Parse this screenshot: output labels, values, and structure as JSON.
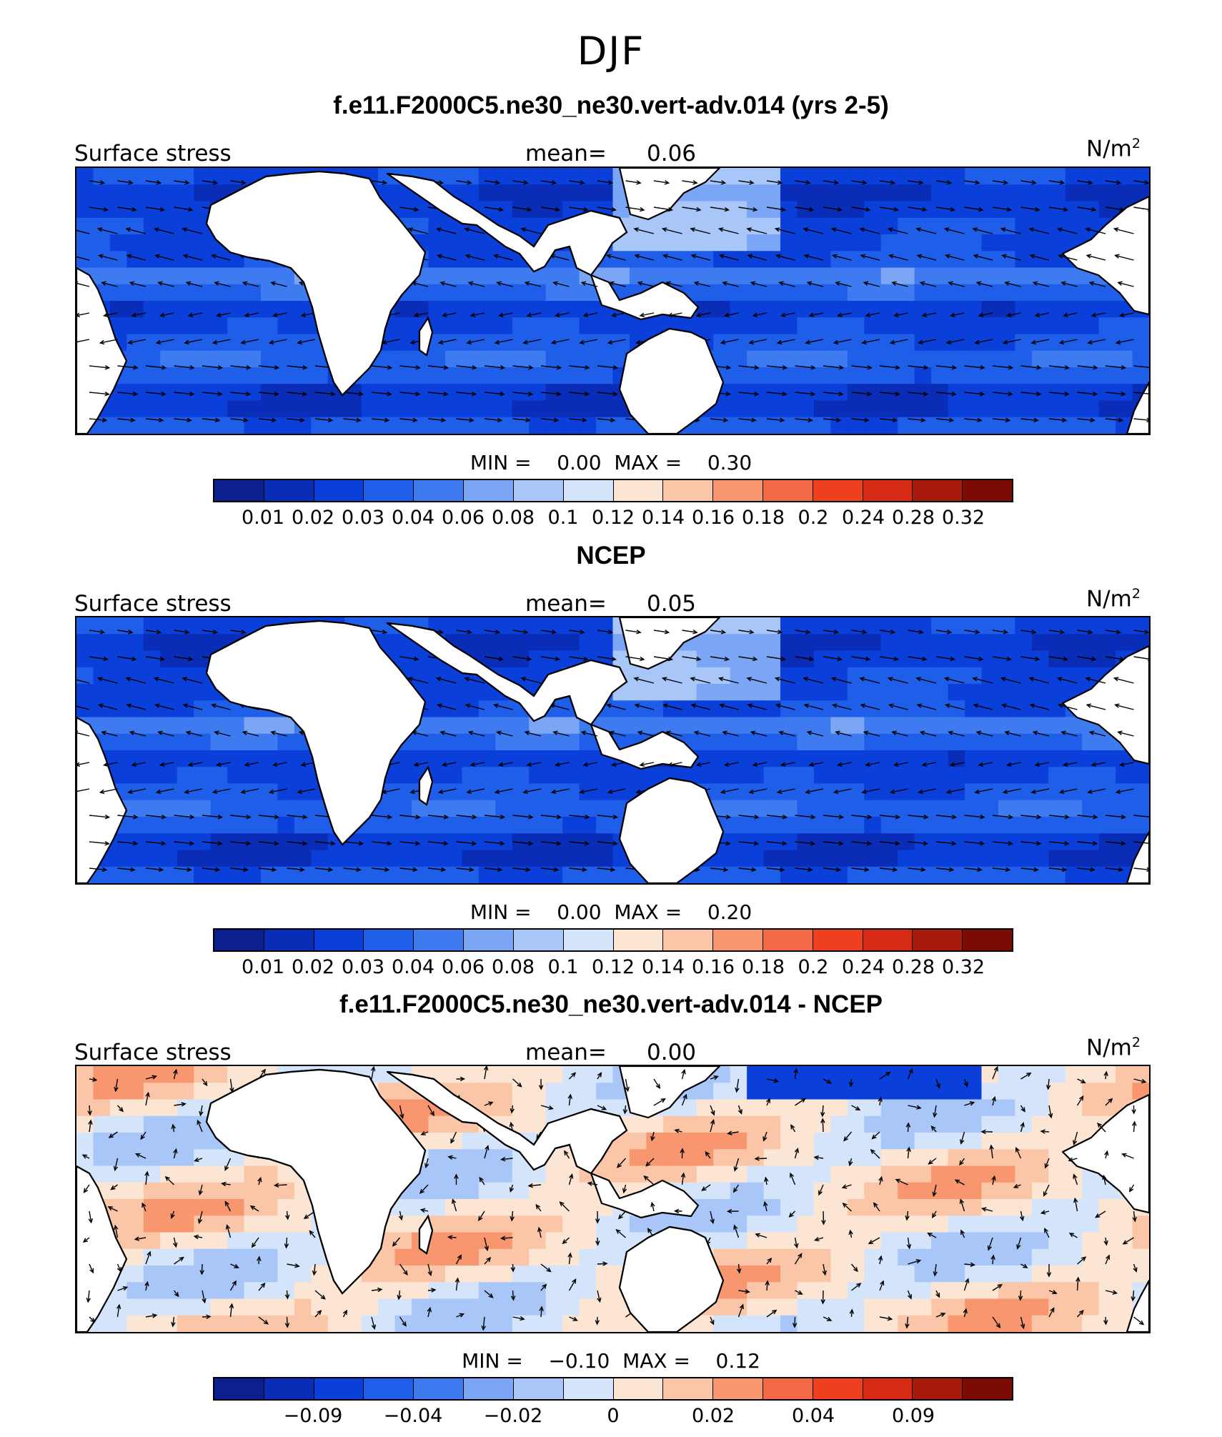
{
  "figure": {
    "season": "DJF"
  },
  "palette": [
    "#0b1f8f",
    "#0a2db8",
    "#0a3fd9",
    "#1f5ee8",
    "#3f7bf0",
    "#7aa6f5",
    "#a8c6f8",
    "#d4e5fb",
    "#fde5d3",
    "#fbc6a8",
    "#f7966f",
    "#f26a45",
    "#ee3f1f",
    "#d72a14",
    "#a81a0b",
    "#7c0b05"
  ],
  "panels": [
    {
      "title": "f.e11.F2000C5.ne30_ne30.vert-adv.014 (yrs 2-5)",
      "field": "Surface stress",
      "mean_label": "mean=",
      "mean": "0.06",
      "units": "N/m",
      "units_sup": "2",
      "min_label": "MIN =",
      "min": "0.00",
      "max_label": "MAX =",
      "max": "0.30",
      "colorbar_ticks": [
        "0.01",
        "0.02",
        "0.03",
        "0.04",
        "0.06",
        "0.08",
        "0.1",
        "0.12",
        "0.14",
        "0.16",
        "0.18",
        "0.2",
        "0.24",
        "0.28",
        "0.32"
      ]
    },
    {
      "title": "NCEP",
      "field": "Surface stress",
      "mean_label": "mean=",
      "mean": "0.05",
      "units": "N/m",
      "units_sup": "2",
      "min_label": "MIN =",
      "min": "0.00",
      "max_label": "MAX =",
      "max": "0.20",
      "colorbar_ticks": [
        "0.01",
        "0.02",
        "0.03",
        "0.04",
        "0.06",
        "0.08",
        "0.1",
        "0.12",
        "0.14",
        "0.16",
        "0.18",
        "0.2",
        "0.24",
        "0.28",
        "0.32"
      ]
    },
    {
      "title": "f.e11.F2000C5.ne30_ne30.vert-adv.014 - NCEP",
      "field": "Surface stress",
      "mean_label": "mean=",
      "mean": "0.00",
      "units": "N/m",
      "units_sup": "2",
      "min_label": "MIN =",
      "min": "−0.10",
      "max_label": "MAX =",
      "max": "0.12",
      "colorbar_ticks": [
        "−0.09",
        "−0.04",
        "−0.02",
        "0",
        "0.02",
        "0.04",
        "0.09"
      ]
    }
  ]
}
